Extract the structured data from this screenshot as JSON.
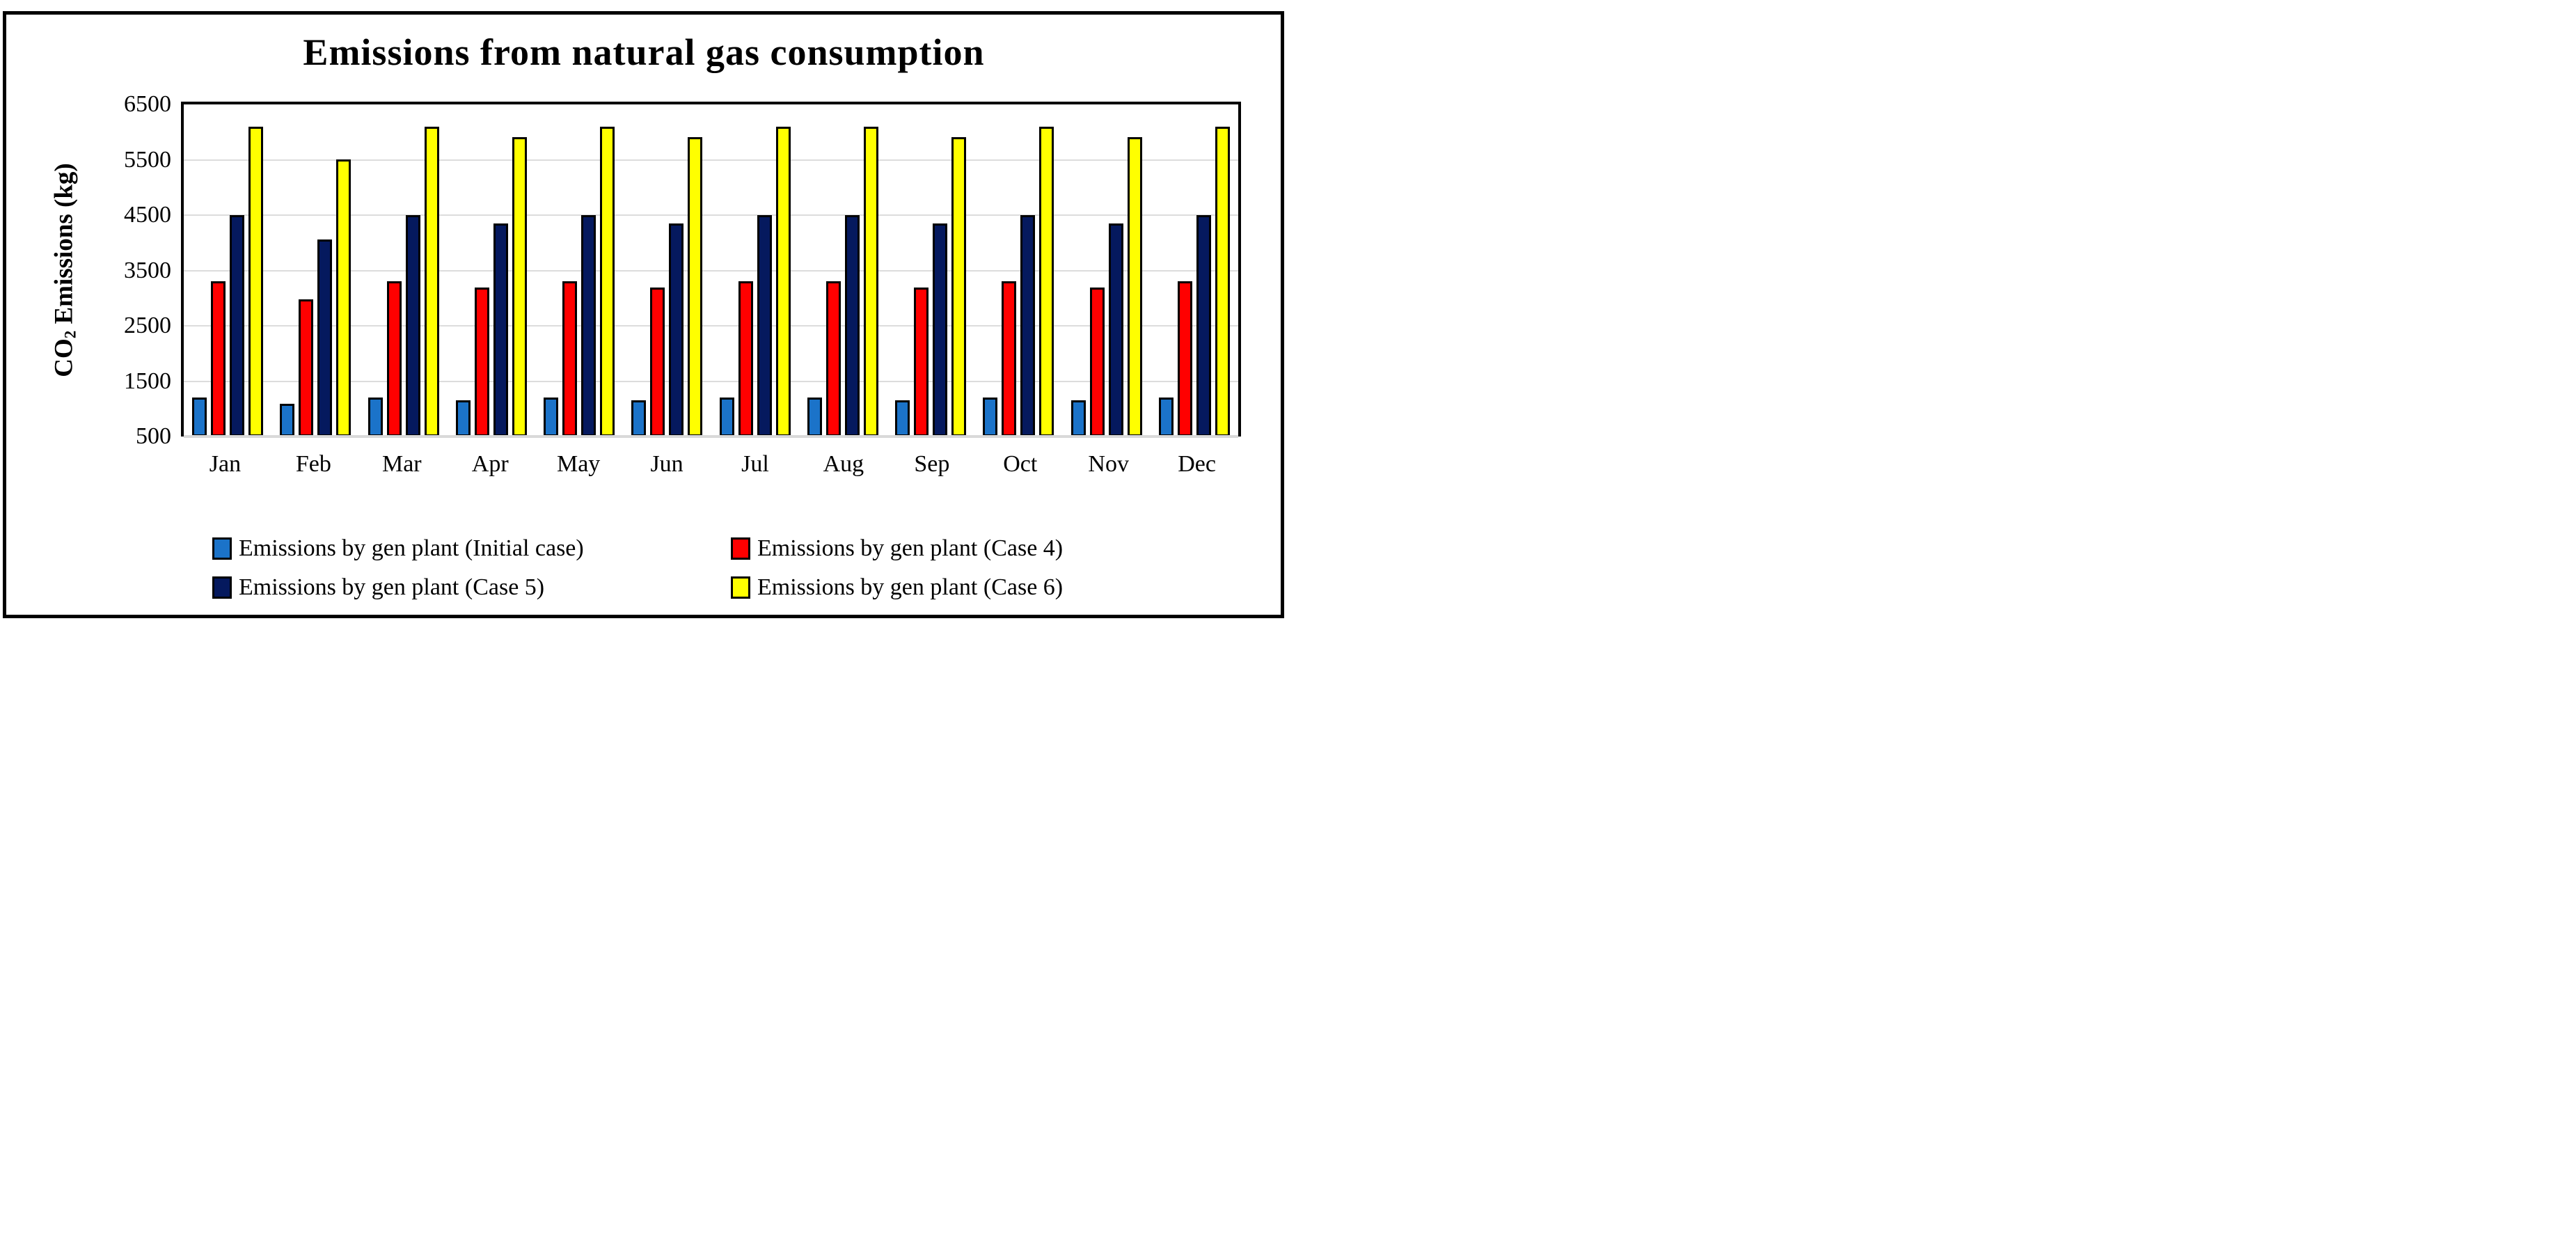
{
  "chart_data": {
    "type": "bar",
    "title": "Emissions from natural gas consumption",
    "xlabel": "",
    "ylabel": "CO₂ Emissions (kg)",
    "ylabel_parts": {
      "pre": "CO",
      "sub": "2",
      "post": " Emissions (kg)"
    },
    "categories": [
      "Jan",
      "Feb",
      "Mar",
      "Apr",
      "May",
      "Jun",
      "Jul",
      "Aug",
      "Sep",
      "Oct",
      "Nov",
      "Dec"
    ],
    "series": [
      {
        "name": "Emissions by gen plant (Initial case)",
        "color": "#1B73C9",
        "values": [
          1200,
          1085,
          1200,
          1160,
          1200,
          1160,
          1200,
          1200,
          1160,
          1200,
          1160,
          1200
        ]
      },
      {
        "name": "Emissions by gen plant (Case 4)",
        "color": "#FF0000",
        "values": [
          3300,
          2980,
          3300,
          3195,
          3300,
          3195,
          3300,
          3300,
          3195,
          3300,
          3195,
          3300
        ]
      },
      {
        "name": "Emissions by gen plant (Case 5)",
        "color": "#05195E",
        "values": [
          4500,
          4065,
          4500,
          4355,
          4500,
          4355,
          4500,
          4500,
          4355,
          4500,
          4355,
          4500
        ]
      },
      {
        "name": "Emissions by gen plant (Case 6)",
        "color": "#FFFF00",
        "values": [
          6100,
          5510,
          6100,
          5905,
          6100,
          5905,
          6100,
          6100,
          5905,
          6100,
          5905,
          6100
        ]
      }
    ],
    "ylim": [
      500,
      6500
    ],
    "ytick_step": 1000,
    "yticks": [
      6500,
      5500,
      4500,
      3500,
      2500,
      1500,
      500
    ],
    "grid": "horizontal",
    "legend_position": "bottom-two-column"
  },
  "styles": {
    "gridline_color": "#DCDCDC",
    "axis_line_color": "#D9D9D9",
    "plot_border_color": "#000000",
    "bar_border_color": "#000000"
  }
}
